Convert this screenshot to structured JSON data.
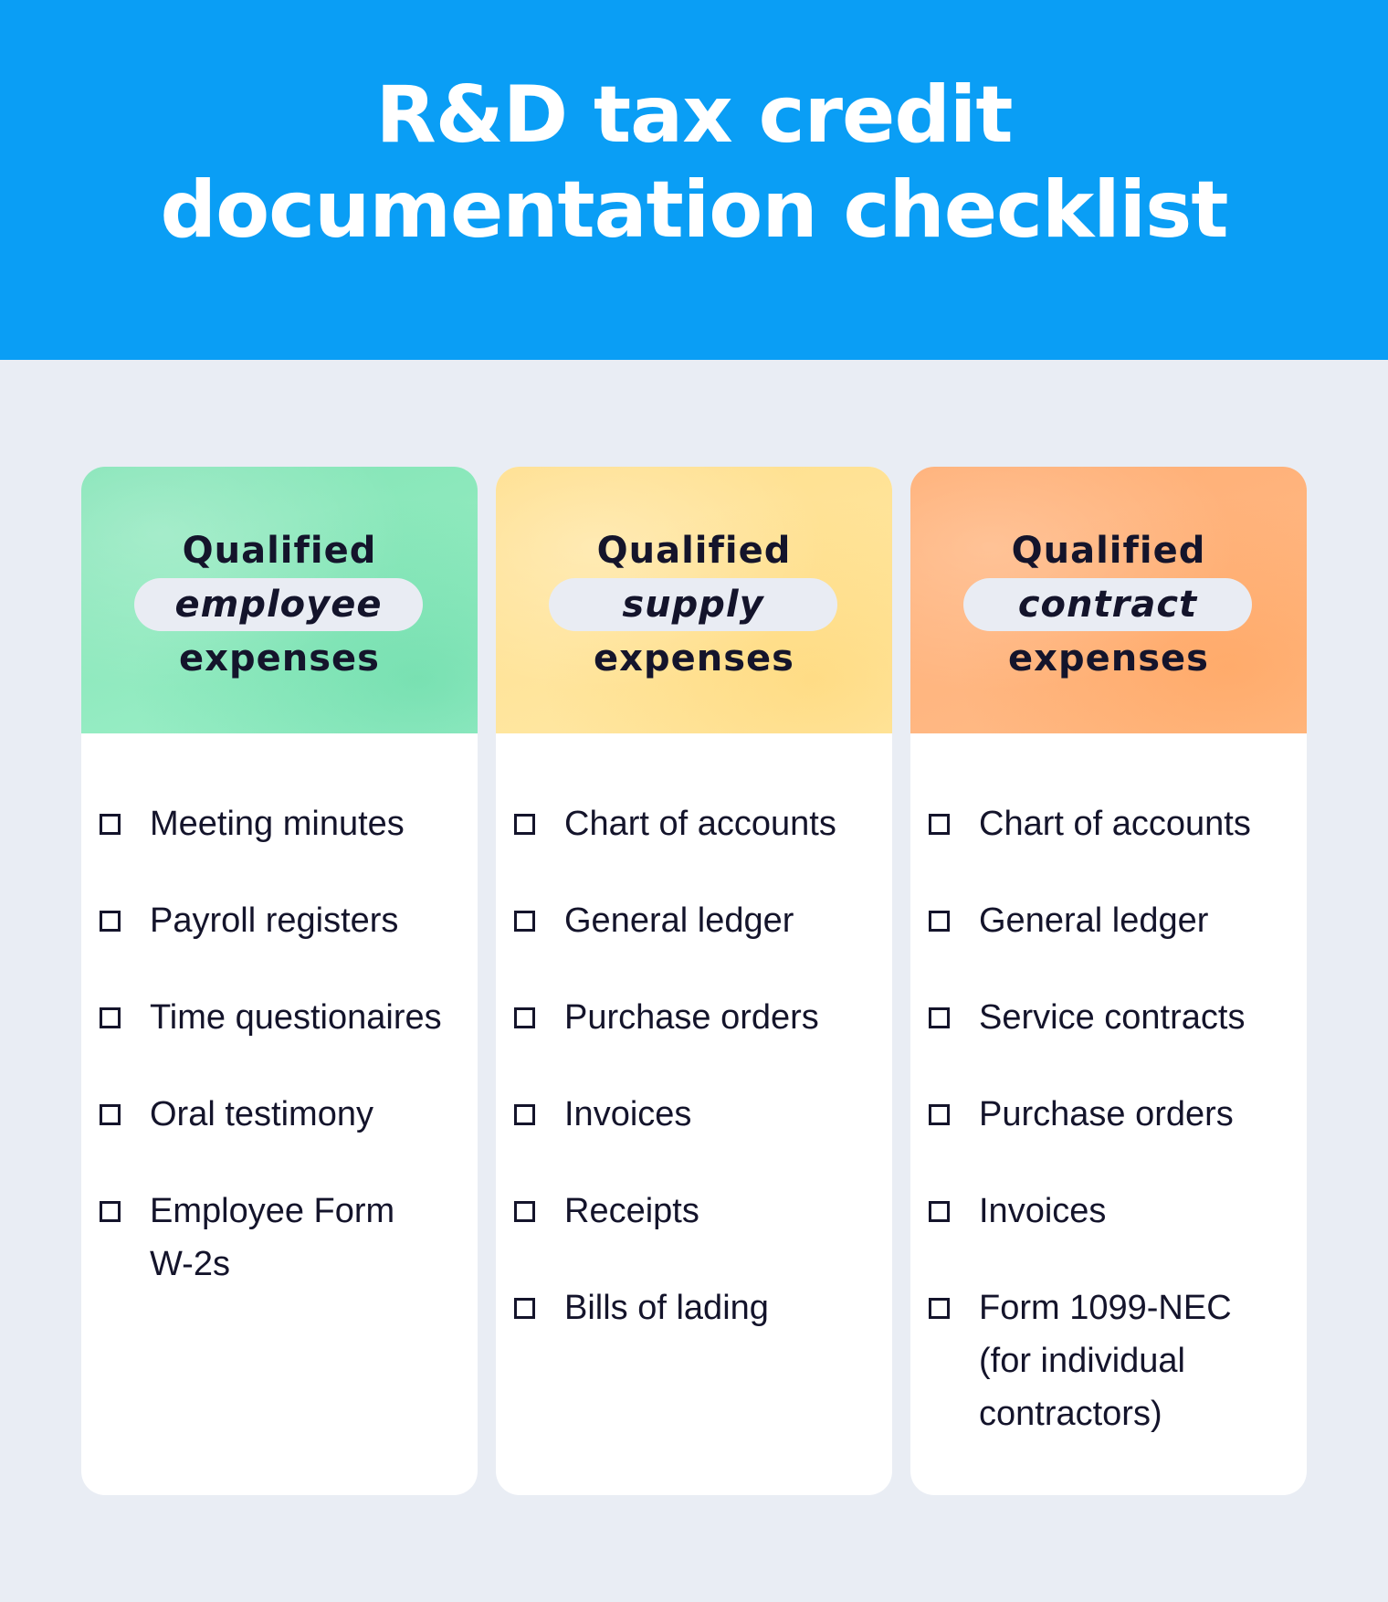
{
  "header": {
    "title_line1": "R&D tax credit",
    "title_line2": "documentation checklist",
    "background_color": "#0a9ef5"
  },
  "columns": [
    {
      "heading_top": "Qualified",
      "heading_highlight": "employee",
      "heading_bottom": "expenses",
      "accent_color": "#8ee9bd",
      "items": [
        "Meeting minutes",
        "Payroll registers",
        "Time questionaires",
        "Oral testimony",
        "Employee Form W-2s"
      ]
    },
    {
      "heading_top": "Qualified",
      "heading_highlight": "supply",
      "heading_bottom": "expenses",
      "accent_color": "#ffe49a",
      "items": [
        "Chart of accounts",
        "General ledger",
        "Purchase orders",
        "Invoices",
        "Receipts",
        "Bills of lading"
      ]
    },
    {
      "heading_top": "Qualified",
      "heading_highlight": "contract",
      "heading_bottom": "expenses",
      "accent_color": "#ffb57f",
      "items": [
        "Chart of accounts",
        "General ledger",
        "Service contracts",
        "Purchase orders",
        "Invoices",
        "Form 1099-NEC (for individual contractors)"
      ]
    }
  ]
}
